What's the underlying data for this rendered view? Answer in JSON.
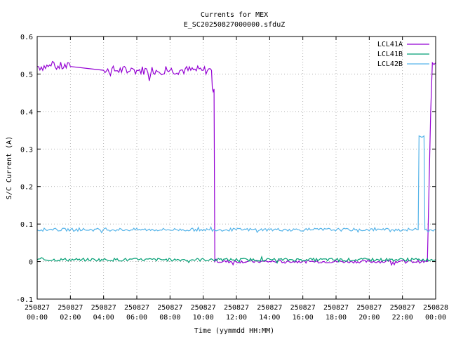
{
  "chart_data": {
    "type": "line",
    "title": "Currents for MEX",
    "subtitle": "E_SC20250827000000.sfduZ",
    "xlabel": "Time (yymmdd HH:MM)",
    "ylabel": "S/C Current (A)",
    "ylim": [
      -0.1,
      0.6
    ],
    "y_ticks": [
      "-0.1",
      "0",
      "0.1",
      "0.2",
      "0.3",
      "0.4",
      "0.5",
      "0.6"
    ],
    "x_range_hours": [
      0,
      24
    ],
    "x_ticks": [
      {
        "date": "250827",
        "time": "00:00"
      },
      {
        "date": "250827",
        "time": "02:00"
      },
      {
        "date": "250827",
        "time": "04:00"
      },
      {
        "date": "250827",
        "time": "06:00"
      },
      {
        "date": "250827",
        "time": "08:00"
      },
      {
        "date": "250827",
        "time": "10:00"
      },
      {
        "date": "250827",
        "time": "12:00"
      },
      {
        "date": "250827",
        "time": "14:00"
      },
      {
        "date": "250827",
        "time": "16:00"
      },
      {
        "date": "250827",
        "time": "18:00"
      },
      {
        "date": "250827",
        "time": "20:00"
      },
      {
        "date": "250827",
        "time": "22:00"
      },
      {
        "date": "250828",
        "time": "00:00"
      }
    ],
    "grid": true,
    "legend_position": "top-right",
    "series": [
      {
        "name": "LCL41A",
        "color": "#9400d3",
        "x": [
          0.0,
          2.0,
          4.0,
          6.0,
          8.0,
          10.0,
          10.5,
          10.55,
          10.65,
          10.7,
          23.45,
          23.5,
          23.7,
          23.8,
          24.0
        ],
        "y": [
          0.52,
          0.52,
          0.51,
          0.51,
          0.51,
          0.51,
          0.51,
          0.46,
          0.46,
          0.0,
          0.0,
          0.0,
          0.4,
          0.53,
          0.53
        ]
      },
      {
        "name": "LCL41B",
        "color": "#009e73",
        "x": [
          0.0,
          24.0
        ],
        "y": [
          0.005,
          0.005
        ]
      },
      {
        "name": "LCL42B",
        "color": "#56b4e9",
        "x": [
          0.0,
          22.95,
          23.0,
          23.3,
          23.35,
          23.65,
          23.7,
          24.0
        ],
        "y": [
          0.085,
          0.085,
          0.335,
          0.335,
          0.085,
          0.085,
          0.085,
          0.085
        ]
      }
    ]
  }
}
